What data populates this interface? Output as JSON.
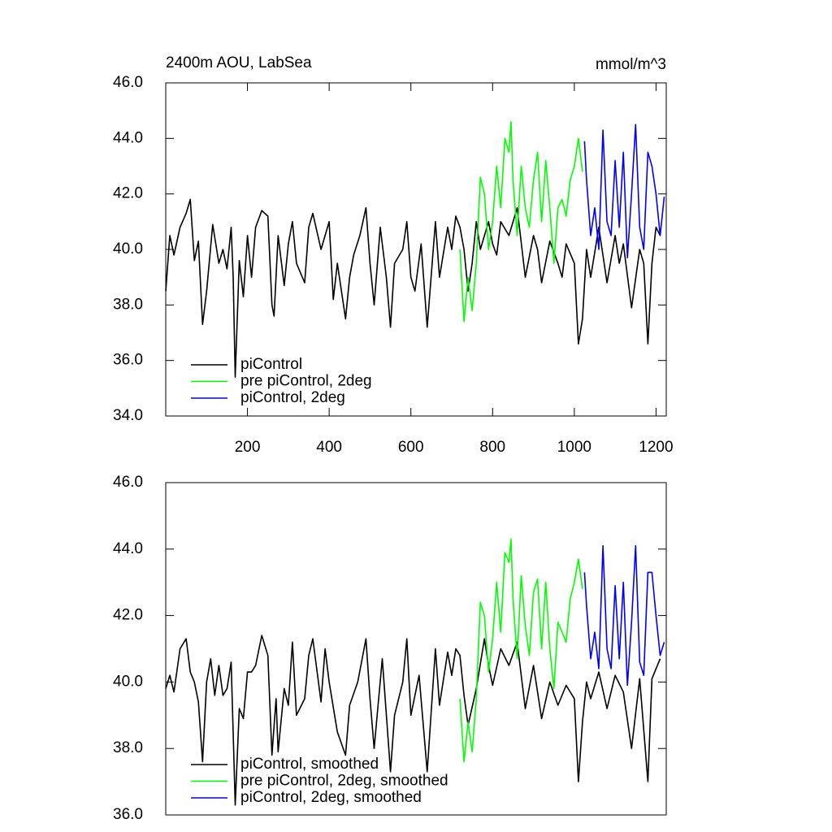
{
  "chart_data": [
    {
      "type": "line",
      "title": "2400m AOU, LabSea",
      "units": "mmol/m^3",
      "xlim": [
        0,
        1225
      ],
      "xticks": [
        200,
        400,
        600,
        800,
        1000,
        1200
      ],
      "ylim": [
        34,
        46
      ],
      "yticks": [
        {
          "value": 34,
          "label": "34.0"
        },
        {
          "value": 36,
          "label": "36.0"
        },
        {
          "value": 38,
          "label": "38.0"
        },
        {
          "value": 40,
          "label": "40.0"
        },
        {
          "value": 42,
          "label": "42.0"
        },
        {
          "value": 44,
          "label": "44.0"
        },
        {
          "value": 46,
          "label": "46.0"
        }
      ],
      "series": [
        {
          "name": "piControl",
          "color": "#000000",
          "x": [
            0,
            10,
            20,
            35,
            50,
            60,
            70,
            80,
            90,
            100,
            115,
            130,
            140,
            150,
            160,
            165,
            170,
            180,
            190,
            200,
            210,
            220,
            235,
            250,
            260,
            265,
            275,
            290,
            300,
            310,
            320,
            340,
            350,
            360,
            380,
            400,
            410,
            420,
            440,
            450,
            460,
            475,
            490,
            500,
            510,
            525,
            540,
            550,
            560,
            580,
            590,
            600,
            610,
            625,
            640,
            660,
            670,
            690,
            700,
            710,
            720,
            730,
            740,
            750,
            760,
            770,
            790,
            800,
            810,
            820,
            840,
            860,
            880,
            900,
            910,
            920,
            940,
            960,
            970,
            980,
            1000,
            1010,
            1020,
            1030,
            1040,
            1060,
            1080,
            1100,
            1110,
            1120,
            1140,
            1160,
            1170,
            1180,
            1190,
            1200,
            1210
          ],
          "values": [
            38.5,
            40.5,
            39.8,
            40.8,
            41.3,
            41.8,
            39.6,
            40.3,
            37.3,
            38.5,
            40.9,
            39.5,
            40.0,
            39.3,
            40.8,
            39.0,
            35.4,
            39.6,
            38.3,
            40.5,
            39.0,
            40.8,
            41.4,
            41.2,
            38.0,
            37.6,
            40.5,
            38.7,
            40.2,
            41.0,
            39.5,
            38.8,
            40.8,
            41.3,
            40.0,
            41.0,
            38.2,
            39.5,
            37.5,
            39.0,
            39.8,
            40.5,
            41.5,
            39.5,
            38.0,
            40.8,
            39.0,
            37.2,
            39.5,
            40.0,
            41.0,
            39.0,
            38.5,
            40.2,
            37.2,
            41.0,
            39.0,
            40.8,
            40.0,
            41.2,
            40.8,
            40.0,
            38.5,
            39.5,
            41.0,
            40.0,
            41.0,
            40.2,
            39.8,
            41.0,
            40.5,
            41.5,
            39.0,
            40.5,
            40.0,
            38.8,
            40.3,
            39.5,
            39.0,
            40.2,
            39.5,
            36.6,
            37.5,
            40.0,
            39.0,
            40.8,
            38.8,
            40.5,
            39.5,
            40.2,
            37.9,
            40.0,
            39.5,
            36.6,
            39.5,
            40.8,
            40.5
          ]
        },
        {
          "name": "pre piControl, 2deg",
          "color": "#00ff00",
          "x": [
            720,
            730,
            740,
            750,
            760,
            770,
            780,
            790,
            800,
            810,
            820,
            830,
            840,
            845,
            850,
            860,
            870,
            880,
            890,
            900,
            910,
            920,
            930,
            940,
            950,
            960,
            970,
            980,
            990,
            1000,
            1010,
            1020
          ],
          "values": [
            40.0,
            37.4,
            39.0,
            37.8,
            39.5,
            42.6,
            42.0,
            40.0,
            41.0,
            43.0,
            41.5,
            44.0,
            43.5,
            44.6,
            42.5,
            40.5,
            43.0,
            41.5,
            40.8,
            42.5,
            43.5,
            41.0,
            43.2,
            41.5,
            39.5,
            41.5,
            41.8,
            41.2,
            42.5,
            43.0,
            44.0,
            42.8
          ]
        },
        {
          "name": "piControl, 2deg",
          "color": "#0000ff",
          "x": [
            1025,
            1030,
            1040,
            1050,
            1060,
            1070,
            1080,
            1090,
            1100,
            1110,
            1120,
            1130,
            1140,
            1150,
            1160,
            1170,
            1180,
            1190,
            1200,
            1210,
            1220
          ],
          "values": [
            43.9,
            42.5,
            40.5,
            41.5,
            40.0,
            44.3,
            41.0,
            40.5,
            43.2,
            40.8,
            43.5,
            39.7,
            42.0,
            44.5,
            40.8,
            40.0,
            43.5,
            43.0,
            42.0,
            40.5,
            41.9
          ]
        }
      ]
    },
    {
      "type": "line",
      "xlim": [
        0,
        1225
      ],
      "ylim": [
        36,
        46
      ],
      "yticks": [
        {
          "value": 36,
          "label": "36.0"
        },
        {
          "value": 38,
          "label": "38.0"
        },
        {
          "value": 40,
          "label": "40.0"
        },
        {
          "value": 42,
          "label": "42.0"
        },
        {
          "value": 44,
          "label": "44.0"
        },
        {
          "value": 46,
          "label": "46.0"
        }
      ],
      "series": [
        {
          "name": "piControl, smoothed",
          "color": "#000000",
          "x": [
            0,
            10,
            20,
            35,
            50,
            60,
            70,
            80,
            90,
            100,
            110,
            120,
            130,
            140,
            150,
            160,
            170,
            180,
            190,
            200,
            210,
            220,
            235,
            250,
            260,
            270,
            275,
            290,
            300,
            310,
            320,
            340,
            350,
            360,
            380,
            390,
            400,
            420,
            440,
            450,
            470,
            490,
            500,
            510,
            530,
            550,
            560,
            580,
            590,
            600,
            620,
            640,
            660,
            670,
            690,
            700,
            710,
            720,
            730,
            740,
            760,
            780,
            790,
            800,
            820,
            840,
            860,
            880,
            900,
            920,
            940,
            960,
            980,
            1000,
            1010,
            1020,
            1030,
            1040,
            1060,
            1080,
            1100,
            1120,
            1140,
            1160,
            1180,
            1190,
            1210
          ],
          "values": [
            39.8,
            40.2,
            39.7,
            41.0,
            41.3,
            40.3,
            40.0,
            39.4,
            37.6,
            40.0,
            40.7,
            39.6,
            40.5,
            39.6,
            39.8,
            40.6,
            36.3,
            39.2,
            38.9,
            40.3,
            40.3,
            40.5,
            41.4,
            40.8,
            37.8,
            39.5,
            37.9,
            39.8,
            39.3,
            41.2,
            39.0,
            39.5,
            40.8,
            41.3,
            39.4,
            41.0,
            40.0,
            38.5,
            37.8,
            39.3,
            40.0,
            41.3,
            39.5,
            38.0,
            40.7,
            37.3,
            39.0,
            40.0,
            41.3,
            39.0,
            40.2,
            37.3,
            41.0,
            39.3,
            40.9,
            40.2,
            41.0,
            40.8,
            39.6,
            38.7,
            39.8,
            41.3,
            40.5,
            39.9,
            41.0,
            40.5,
            41.2,
            39.2,
            40.5,
            38.9,
            40.0,
            39.3,
            39.9,
            39.5,
            37.0,
            38.8,
            40.0,
            39.5,
            40.3,
            39.2,
            40.2,
            39.7,
            38.0,
            40.1,
            37.0,
            40.1,
            40.7
          ]
        },
        {
          "name": "pre piControl, 2deg, smoothed",
          "color": "#00ff00",
          "x": [
            720,
            730,
            740,
            750,
            760,
            770,
            780,
            790,
            800,
            810,
            820,
            830,
            840,
            845,
            850,
            860,
            870,
            880,
            890,
            900,
            910,
            920,
            930,
            940,
            950,
            960,
            970,
            980,
            990,
            1000,
            1010,
            1020
          ],
          "values": [
            39.5,
            37.6,
            38.8,
            37.9,
            39.5,
            42.4,
            42.0,
            40.3,
            41.3,
            43.0,
            41.5,
            43.9,
            43.6,
            44.3,
            42.5,
            40.7,
            43.2,
            41.7,
            40.8,
            42.7,
            43.1,
            41.0,
            43.0,
            41.0,
            39.8,
            41.8,
            41.5,
            41.2,
            42.5,
            43.0,
            43.7,
            42.8
          ]
        },
        {
          "name": "piControl, 2deg, smoothed",
          "color": "#0000ff",
          "x": [
            1025,
            1030,
            1040,
            1050,
            1060,
            1070,
            1080,
            1090,
            1100,
            1110,
            1120,
            1130,
            1140,
            1150,
            1160,
            1170,
            1180,
            1190,
            1200,
            1210,
            1220
          ],
          "values": [
            43.3,
            42.3,
            40.7,
            41.5,
            40.4,
            44.1,
            41.0,
            40.4,
            42.9,
            40.7,
            43.0,
            39.9,
            41.8,
            44.1,
            40.6,
            40.2,
            43.3,
            43.3,
            42.0,
            40.8,
            41.2
          ]
        }
      ]
    }
  ]
}
